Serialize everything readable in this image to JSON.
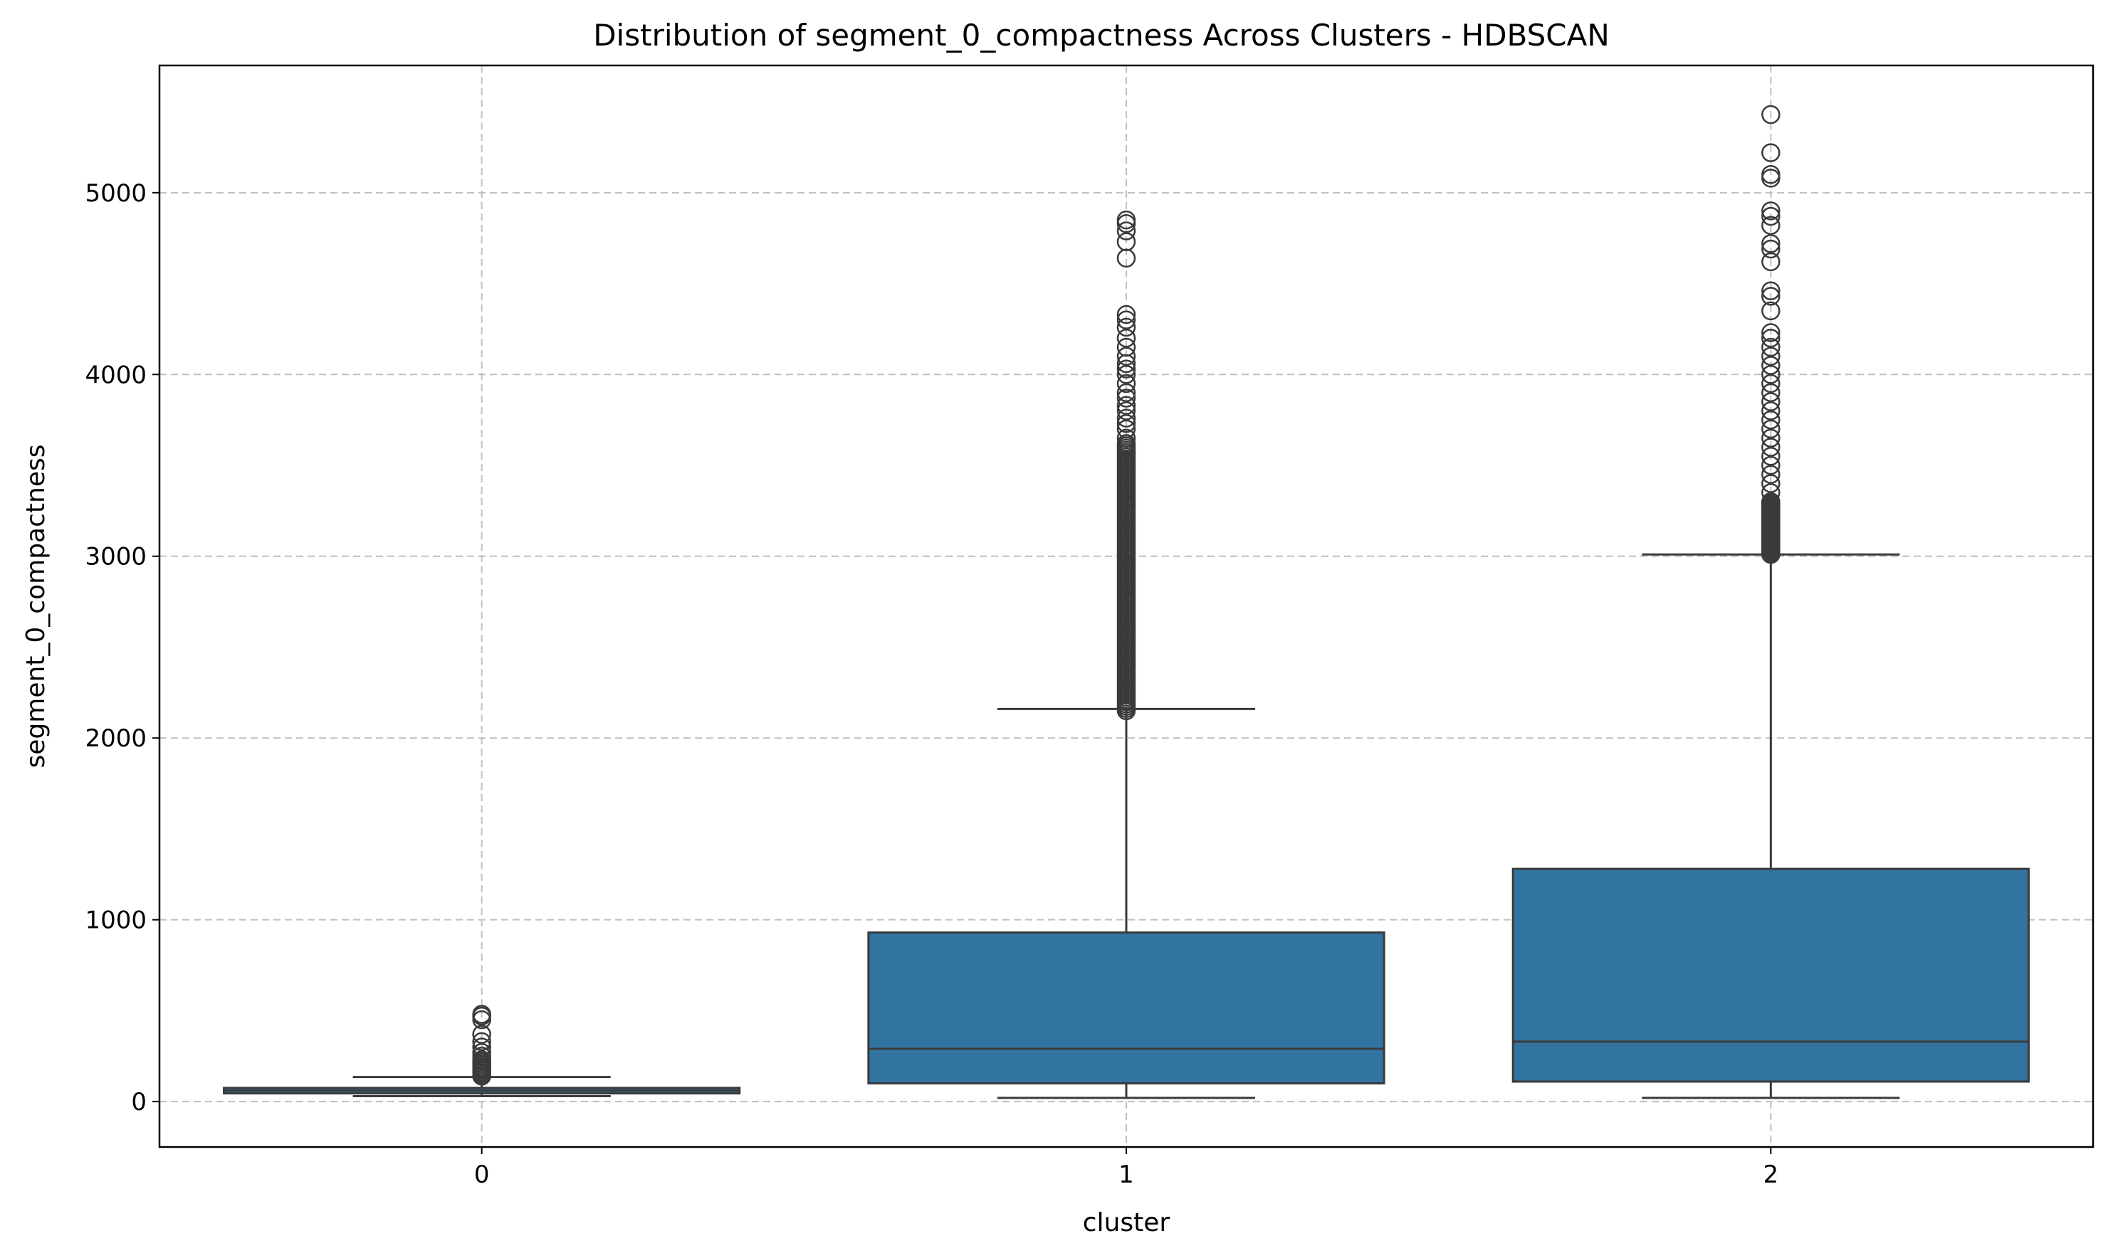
{
  "chart_data": {
    "type": "box",
    "title": "Distribution of segment_0_compactness Across Clusters - HDBSCAN",
    "xlabel": "cluster",
    "ylabel": "segment_0_compactness",
    "categories": [
      "0",
      "1",
      "2"
    ],
    "ylim": [
      -250,
      5700
    ],
    "yticks": [
      0,
      1000,
      2000,
      3000,
      4000,
      5000
    ],
    "grid": true,
    "box_color": "#3274a1",
    "line_color": "#3a3a3a",
    "boxes": [
      {
        "category": "0",
        "whisker_low": 30,
        "q1": 45,
        "median": 60,
        "q3": 75,
        "whisker_high": 135,
        "fliers": [
          140,
          150,
          160,
          170,
          180,
          190,
          200,
          210,
          220,
          230,
          250,
          270,
          300,
          330,
          370,
          450,
          470,
          480
        ]
      },
      {
        "category": "1",
        "whisker_low": 20,
        "q1": 100,
        "median": 290,
        "q3": 930,
        "whisker_high": 2160,
        "fliers_dense_range": [
          2150,
          3620
        ],
        "fliers": [
          3650,
          3700,
          3730,
          3760,
          3800,
          3830,
          3870,
          3900,
          3950,
          4000,
          4030,
          4060,
          4100,
          4150,
          4200,
          4260,
          4300,
          4330,
          4640,
          4730,
          4790,
          4830,
          4850
        ]
      },
      {
        "category": "2",
        "whisker_low": 20,
        "q1": 110,
        "median": 330,
        "q3": 1280,
        "whisker_high": 3010,
        "fliers_dense_range": [
          3010,
          3300
        ],
        "fliers": [
          3350,
          3400,
          3450,
          3500,
          3550,
          3600,
          3650,
          3700,
          3750,
          3800,
          3850,
          3900,
          3950,
          4000,
          4050,
          4100,
          4150,
          4200,
          4230,
          4350,
          4430,
          4460,
          4620,
          4690,
          4720,
          4820,
          4870,
          4900,
          5080,
          5100,
          5220,
          5430
        ]
      }
    ]
  }
}
